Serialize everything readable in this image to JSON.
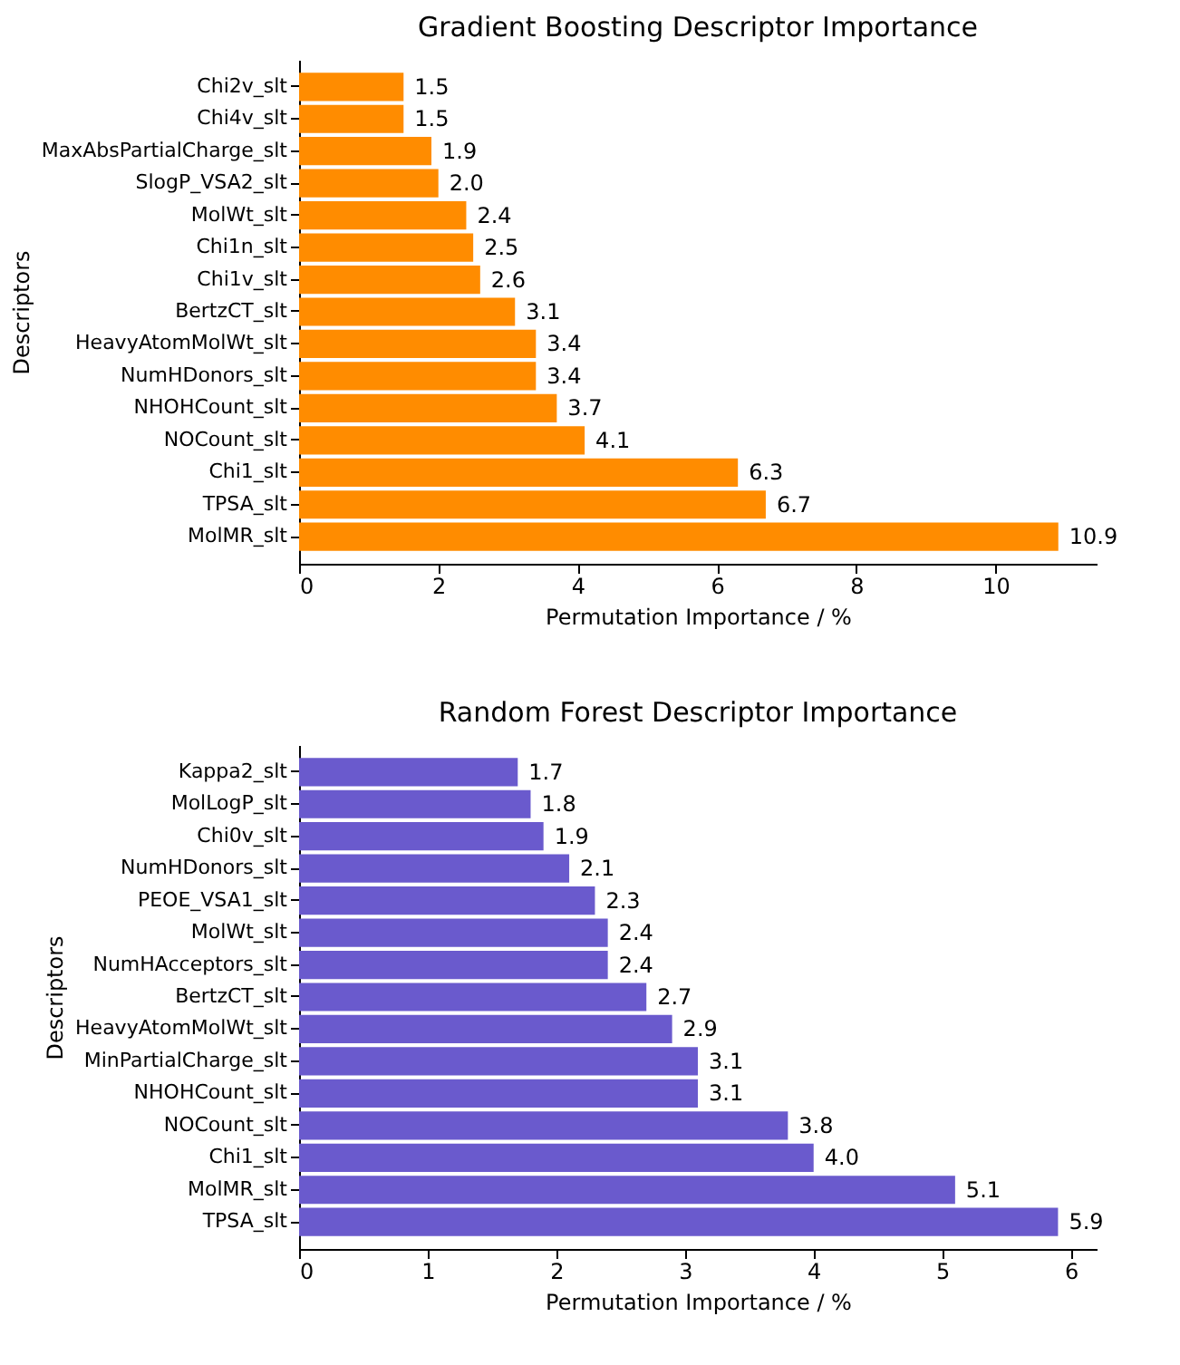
{
  "chart_data": [
    {
      "type": "bar",
      "orientation": "horizontal",
      "title": "Gradient Boosting Descriptor Importance",
      "xlabel": "Permutation Importance / %",
      "ylabel": "Descriptors",
      "categories": [
        "Chi2v_slt",
        "Chi4v_slt",
        "MaxAbsPartialCharge_slt",
        "SlogP_VSA2_slt",
        "MolWt_slt",
        "Chi1n_slt",
        "Chi1v_slt",
        "BertzCT_slt",
        "HeavyAtomMolWt_slt",
        "NumHDonors_slt",
        "NHOHCount_slt",
        "NOCount_slt",
        "Chi1_slt",
        "TPSA_slt",
        "MolMR_slt"
      ],
      "values": [
        1.5,
        1.5,
        1.9,
        2.0,
        2.4,
        2.5,
        2.6,
        3.1,
        3.4,
        3.4,
        3.7,
        4.1,
        6.3,
        6.7,
        10.9
      ],
      "value_labels": [
        "1.5",
        "1.5",
        "1.9",
        "2.0",
        "2.4",
        "2.5",
        "2.6",
        "3.1",
        "3.4",
        "3.4",
        "3.7",
        "4.1",
        "6.3",
        "6.7",
        "10.9"
      ],
      "color": "#ff8c00",
      "xlim": [
        0,
        11.45
      ],
      "xticks": [
        0,
        2,
        4,
        6,
        8,
        10
      ]
    },
    {
      "type": "bar",
      "orientation": "horizontal",
      "title": "Random Forest Descriptor Importance",
      "xlabel": "Permutation Importance / %",
      "ylabel": "Descriptors",
      "categories": [
        "Kappa2_slt",
        "MolLogP_slt",
        "Chi0v_slt",
        "NumHDonors_slt",
        "PEOE_VSA1_slt",
        "MolWt_slt",
        "NumHAcceptors_slt",
        "BertzCT_slt",
        "HeavyAtomMolWt_slt",
        "MinPartialCharge_slt",
        "NHOHCount_slt",
        "NOCount_slt",
        "Chi1_slt",
        "MolMR_slt",
        "TPSA_slt"
      ],
      "values": [
        1.7,
        1.8,
        1.9,
        2.1,
        2.3,
        2.4,
        2.4,
        2.7,
        2.9,
        3.1,
        3.1,
        3.8,
        4.0,
        5.1,
        5.9
      ],
      "value_labels": [
        "1.7",
        "1.8",
        "1.9",
        "2.1",
        "2.3",
        "2.4",
        "2.4",
        "2.7",
        "2.9",
        "3.1",
        "3.1",
        "3.8",
        "4.0",
        "5.1",
        "5.9"
      ],
      "color": "#6a5acd",
      "xlim": [
        0,
        6.2
      ],
      "xticks": [
        0,
        1,
        2,
        3,
        4,
        5,
        6
      ]
    }
  ]
}
